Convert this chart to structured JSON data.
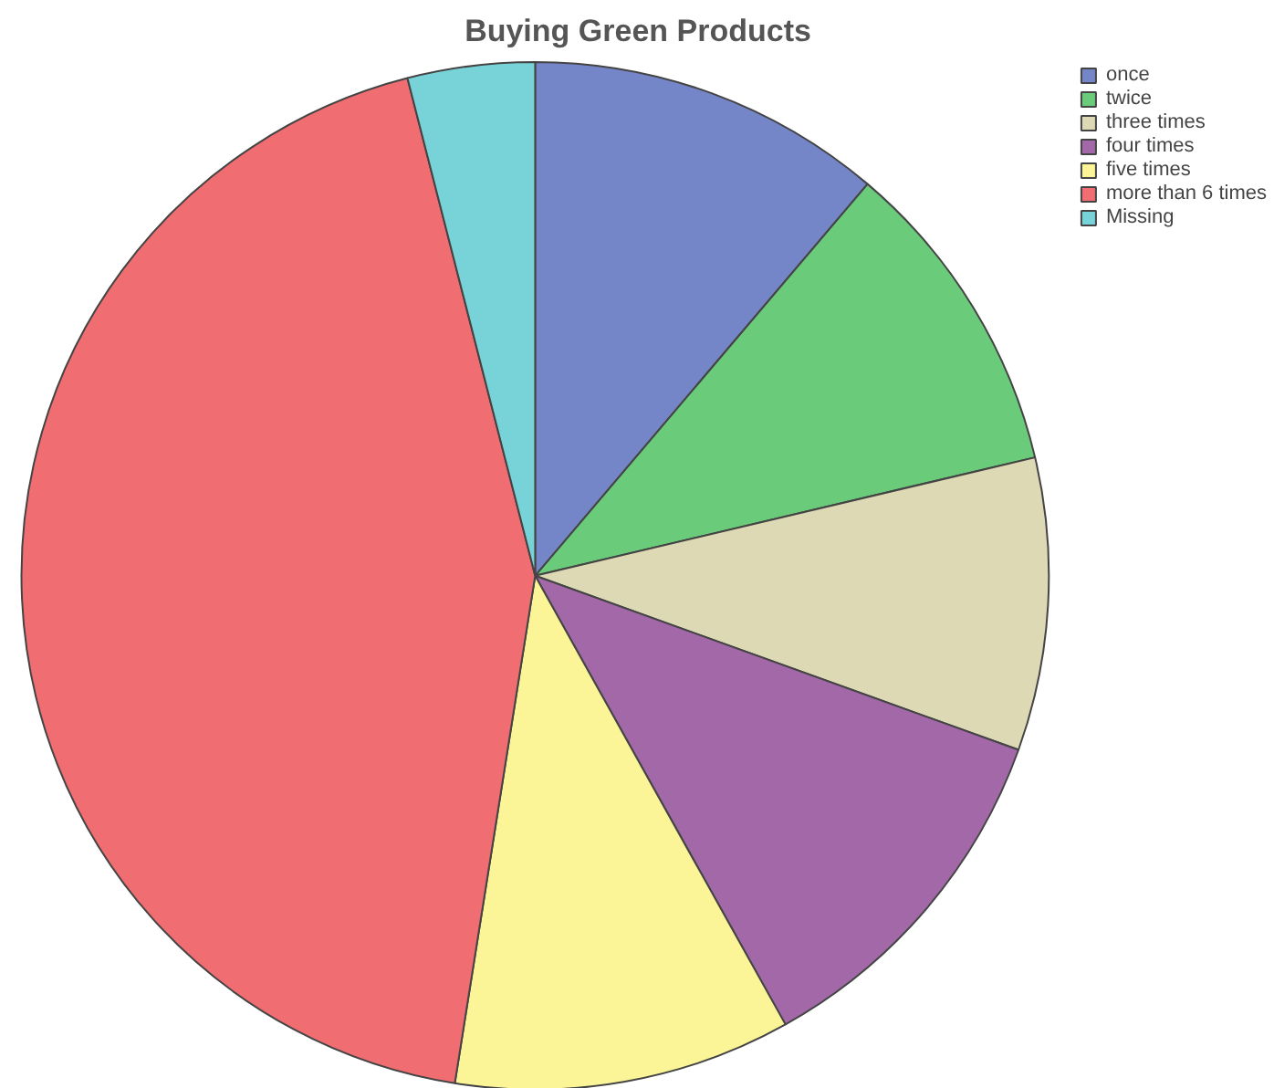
{
  "chart_data": {
    "type": "pie",
    "title": "Buying Green Products",
    "categories": [
      "once",
      "twice",
      "three times",
      "four times",
      "five times",
      "more than 6 times",
      "Missing"
    ],
    "values": [
      11.2,
      10.1,
      9.2,
      11.4,
      10.6,
      43.5,
      4.0
    ],
    "colors": [
      "#7586c8",
      "#6acb7b",
      "#ded9b5",
      "#a268a8",
      "#fbf597",
      "#f06d72",
      "#78d3d9"
    ],
    "legend": "top right"
  }
}
